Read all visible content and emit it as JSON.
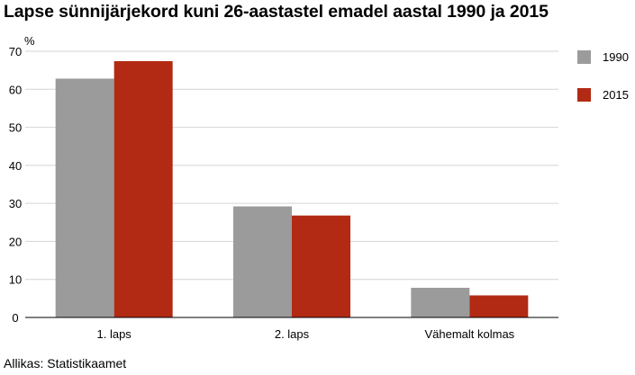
{
  "chart_data": {
    "type": "bar",
    "title": "Lapse sünnijärjekord kuni 26-aastastel emadel aastal 1990 ja 2015",
    "ylabel": "%",
    "xlabel": "",
    "categories": [
      "1. laps",
      "2. laps",
      "Vähemalt kolmas"
    ],
    "series": [
      {
        "name": "1990",
        "values": [
          62.8,
          29.2,
          7.8
        ],
        "color": "#9b9b9b"
      },
      {
        "name": "2015",
        "values": [
          67.4,
          26.8,
          5.8
        ],
        "color": "#b22a14"
      }
    ],
    "ylim": [
      0,
      70
    ],
    "yticks": [
      "0",
      "10",
      "20",
      "30",
      "40",
      "50",
      "60",
      "70"
    ],
    "grid": true,
    "legend_position": "right"
  },
  "source": "Allikas: Statistikaamet"
}
